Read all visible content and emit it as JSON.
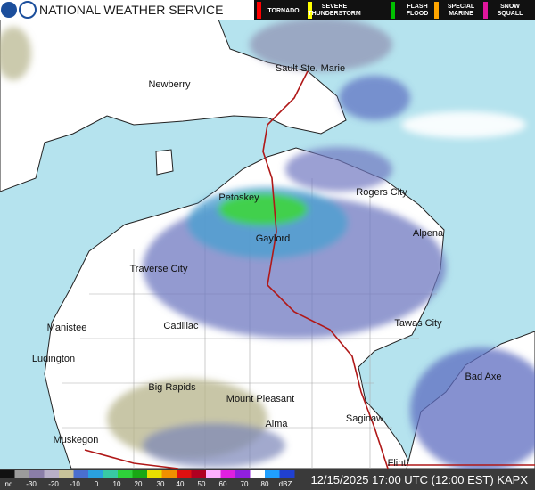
{
  "header": {
    "title": "NATIONAL WEATHER SERVICE",
    "warnings": [
      {
        "label_lines": [
          "TORNADO"
        ],
        "color": "#ff0000"
      },
      {
        "label_lines": [
          "SEVERE",
          "THUNDERSTORM"
        ],
        "color": "#ffff00"
      },
      {
        "label_lines": [
          "FLASH",
          "FLOOD"
        ],
        "color": "#00c000"
      },
      {
        "label_lines": [
          "SPECIAL",
          "MARINE"
        ],
        "color": "#ffa500"
      },
      {
        "label_lines": [
          "SNOW",
          "SQUALL"
        ],
        "color": "#e0169c"
      }
    ]
  },
  "map": {
    "cities": [
      "Sault Ste. Marie",
      "Newberry",
      "Petoskey",
      "Rogers City",
      "Gaylord",
      "Alpena",
      "Traverse City",
      "Cadillac",
      "Manistee",
      "Tawas City",
      "Ludington",
      "Bad Axe",
      "Big Rapids",
      "Mount Pleasant",
      "Alma",
      "Saginaw",
      "Muskegon",
      "Flint"
    ]
  },
  "footer": {
    "scale_labels": [
      "nd",
      -30,
      -20,
      -10,
      0,
      10,
      20,
      30,
      40,
      50,
      60,
      70,
      80,
      "dBZ"
    ],
    "timestamp": "12/15/2025 17:00 UTC (12:00 EST) KAPX"
  }
}
